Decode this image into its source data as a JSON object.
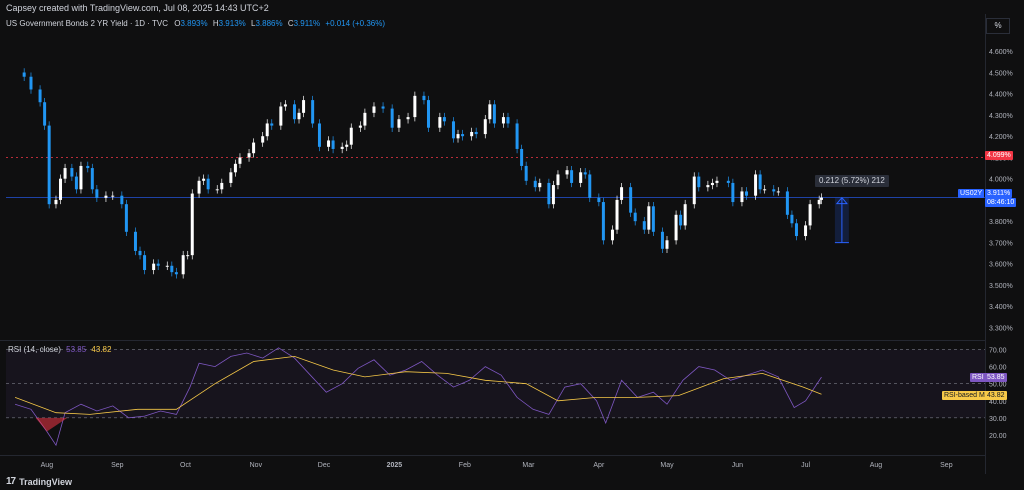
{
  "header": {
    "caption": "Capsey created with TradingView.com, Jul 08, 2025 14:43 UTC+2",
    "symbol_title": "US Government Bonds 2 YR Yield · 1D · TVC",
    "ohlc": {
      "o_label": "O",
      "o": "3.893%",
      "h_label": "H",
      "h": "3.913%",
      "l_label": "L",
      "l": "3.886%",
      "c_label": "C",
      "c": "3.911%",
      "change": "+0.014 (+0.36%)"
    },
    "unit_button": "%"
  },
  "price_axis": {
    "ticks": [
      "4.600%",
      "4.500%",
      "4.400%",
      "4.300%",
      "4.200%",
      "4.100%",
      "4.000%",
      "3.900%",
      "3.800%",
      "3.700%",
      "3.600%",
      "3.500%",
      "3.400%",
      "3.300%"
    ],
    "hline_label": "4.099%",
    "symbol_tag": "US02Y",
    "last_price": "3.911%",
    "countdown": "08:46:10"
  },
  "measure_label": "0.212 (5.72%) 212",
  "rsi": {
    "title": "RSI (14, close)",
    "value": "53.85",
    "ma_value": "43.82",
    "ticks": [
      "70.00",
      "60.00",
      "50.00",
      "40.00",
      "30.00",
      "20.00"
    ],
    "rsi_tag": "RSI",
    "ma_tag": "RSI-based MA"
  },
  "time_axis": {
    "labels": [
      "Aug",
      "Sep",
      "Oct",
      "Nov",
      "Dec",
      "2025",
      "Feb",
      "Mar",
      "Apr",
      "May",
      "Jun",
      "Jul",
      "Aug",
      "Sep"
    ]
  },
  "footer": {
    "brand": "TradingView"
  },
  "colors": {
    "up": "#ffffff",
    "down": "#2196f3",
    "rsi_line": "#7e57c2",
    "rsi_ma": "#f7c948",
    "hline": "#f23645",
    "price_line": "#2962ff"
  },
  "chart_data": {
    "type": "candlestick",
    "title": "US Government Bonds 2 YR Yield · 1D · TVC",
    "ylim": [
      3.25,
      4.7
    ],
    "rsi_ylim": [
      10,
      75
    ],
    "horizontal_line": 4.099,
    "last_price": 3.911,
    "measure": {
      "from": 3.699,
      "to": 3.911
    },
    "close_points": [
      {
        "x": "2024-07-18",
        "y": 4.5
      },
      {
        "x": "2024-07-22",
        "y": 4.48
      },
      {
        "x": "2024-07-25",
        "y": 4.42
      },
      {
        "x": "2024-07-29",
        "y": 4.36
      },
      {
        "x": "2024-07-31",
        "y": 4.25
      },
      {
        "x": "2024-08-02",
        "y": 3.88
      },
      {
        "x": "2024-08-05",
        "y": 3.9
      },
      {
        "x": "2024-08-07",
        "y": 4.0
      },
      {
        "x": "2024-08-09",
        "y": 4.05
      },
      {
        "x": "2024-08-12",
        "y": 4.01
      },
      {
        "x": "2024-08-14",
        "y": 3.95
      },
      {
        "x": "2024-08-16",
        "y": 4.06
      },
      {
        "x": "2024-08-19",
        "y": 4.05
      },
      {
        "x": "2024-08-21",
        "y": 3.95
      },
      {
        "x": "2024-08-23",
        "y": 3.91
      },
      {
        "x": "2024-08-27",
        "y": 3.92
      },
      {
        "x": "2024-08-30",
        "y": 3.92
      },
      {
        "x": "2024-09-03",
        "y": 3.88
      },
      {
        "x": "2024-09-05",
        "y": 3.75
      },
      {
        "x": "2024-09-09",
        "y": 3.66
      },
      {
        "x": "2024-09-11",
        "y": 3.64
      },
      {
        "x": "2024-09-13",
        "y": 3.57
      },
      {
        "x": "2024-09-17",
        "y": 3.6
      },
      {
        "x": "2024-09-19",
        "y": 3.59
      },
      {
        "x": "2024-09-23",
        "y": 3.59
      },
      {
        "x": "2024-09-25",
        "y": 3.56
      },
      {
        "x": "2024-09-27",
        "y": 3.55
      },
      {
        "x": "2024-09-30",
        "y": 3.64
      },
      {
        "x": "2024-10-02",
        "y": 3.64
      },
      {
        "x": "2024-10-04",
        "y": 3.93
      },
      {
        "x": "2024-10-07",
        "y": 3.99
      },
      {
        "x": "2024-10-09",
        "y": 4.0
      },
      {
        "x": "2024-10-11",
        "y": 3.95
      },
      {
        "x": "2024-10-15",
        "y": 3.95
      },
      {
        "x": "2024-10-17",
        "y": 3.98
      },
      {
        "x": "2024-10-21",
        "y": 4.03
      },
      {
        "x": "2024-10-23",
        "y": 4.07
      },
      {
        "x": "2024-10-25",
        "y": 4.1
      },
      {
        "x": "2024-10-29",
        "y": 4.12
      },
      {
        "x": "2024-10-31",
        "y": 4.17
      },
      {
        "x": "2024-11-04",
        "y": 4.2
      },
      {
        "x": "2024-11-06",
        "y": 4.26
      },
      {
        "x": "2024-11-08",
        "y": 4.25
      },
      {
        "x": "2024-11-12",
        "y": 4.34
      },
      {
        "x": "2024-11-14",
        "y": 4.35
      },
      {
        "x": "2024-11-18",
        "y": 4.28
      },
      {
        "x": "2024-11-20",
        "y": 4.31
      },
      {
        "x": "2024-11-22",
        "y": 4.37
      },
      {
        "x": "2024-11-26",
        "y": 4.26
      },
      {
        "x": "2024-11-29",
        "y": 4.15
      },
      {
        "x": "2024-12-03",
        "y": 4.18
      },
      {
        "x": "2024-12-05",
        "y": 4.14
      },
      {
        "x": "2024-12-09",
        "y": 4.15
      },
      {
        "x": "2024-12-11",
        "y": 4.16
      },
      {
        "x": "2024-12-13",
        "y": 4.24
      },
      {
        "x": "2024-12-17",
        "y": 4.25
      },
      {
        "x": "2024-12-19",
        "y": 4.31
      },
      {
        "x": "2024-12-23",
        "y": 4.34
      },
      {
        "x": "2024-12-27",
        "y": 4.33
      },
      {
        "x": "2024-12-31",
        "y": 4.24
      },
      {
        "x": "2025-01-03",
        "y": 4.28
      },
      {
        "x": "2025-01-07",
        "y": 4.29
      },
      {
        "x": "2025-01-10",
        "y": 4.39
      },
      {
        "x": "2025-01-14",
        "y": 4.37
      },
      {
        "x": "2025-01-16",
        "y": 4.24
      },
      {
        "x": "2025-01-21",
        "y": 4.29
      },
      {
        "x": "2025-01-23",
        "y": 4.27
      },
      {
        "x": "2025-01-27",
        "y": 4.19
      },
      {
        "x": "2025-01-29",
        "y": 4.21
      },
      {
        "x": "2025-01-31",
        "y": 4.2
      },
      {
        "x": "2025-02-04",
        "y": 4.22
      },
      {
        "x": "2025-02-06",
        "y": 4.21
      },
      {
        "x": "2025-02-10",
        "y": 4.28
      },
      {
        "x": "2025-02-12",
        "y": 4.35
      },
      {
        "x": "2025-02-14",
        "y": 4.26
      },
      {
        "x": "2025-02-18",
        "y": 4.29
      },
      {
        "x": "2025-02-20",
        "y": 4.26
      },
      {
        "x": "2025-02-24",
        "y": 4.14
      },
      {
        "x": "2025-02-26",
        "y": 4.06
      },
      {
        "x": "2025-02-28",
        "y": 3.99
      },
      {
        "x": "2025-03-04",
        "y": 3.96
      },
      {
        "x": "2025-03-06",
        "y": 3.98
      },
      {
        "x": "2025-03-10",
        "y": 3.88
      },
      {
        "x": "2025-03-12",
        "y": 3.97
      },
      {
        "x": "2025-03-14",
        "y": 4.02
      },
      {
        "x": "2025-03-18",
        "y": 4.04
      },
      {
        "x": "2025-03-20",
        "y": 3.98
      },
      {
        "x": "2025-03-24",
        "y": 4.03
      },
      {
        "x": "2025-03-26",
        "y": 4.02
      },
      {
        "x": "2025-03-28",
        "y": 3.91
      },
      {
        "x": "2025-04-01",
        "y": 3.89
      },
      {
        "x": "2025-04-03",
        "y": 3.71
      },
      {
        "x": "2025-04-07",
        "y": 3.76
      },
      {
        "x": "2025-04-09",
        "y": 3.9
      },
      {
        "x": "2025-04-11",
        "y": 3.96
      },
      {
        "x": "2025-04-15",
        "y": 3.84
      },
      {
        "x": "2025-04-17",
        "y": 3.8
      },
      {
        "x": "2025-04-21",
        "y": 3.76
      },
      {
        "x": "2025-04-23",
        "y": 3.87
      },
      {
        "x": "2025-04-25",
        "y": 3.75
      },
      {
        "x": "2025-04-29",
        "y": 3.67
      },
      {
        "x": "2025-05-01",
        "y": 3.71
      },
      {
        "x": "2025-05-05",
        "y": 3.83
      },
      {
        "x": "2025-05-07",
        "y": 3.78
      },
      {
        "x": "2025-05-09",
        "y": 3.88
      },
      {
        "x": "2025-05-13",
        "y": 4.01
      },
      {
        "x": "2025-05-15",
        "y": 3.96
      },
      {
        "x": "2025-05-19",
        "y": 3.97
      },
      {
        "x": "2025-05-21",
        "y": 3.98
      },
      {
        "x": "2025-05-23",
        "y": 3.99
      },
      {
        "x": "2025-05-28",
        "y": 3.98
      },
      {
        "x": "2025-05-30",
        "y": 3.89
      },
      {
        "x": "2025-06-03",
        "y": 3.94
      },
      {
        "x": "2025-06-05",
        "y": 3.92
      },
      {
        "x": "2025-06-09",
        "y": 4.02
      },
      {
        "x": "2025-06-11",
        "y": 3.95
      },
      {
        "x": "2025-06-13",
        "y": 3.95
      },
      {
        "x": "2025-06-17",
        "y": 3.94
      },
      {
        "x": "2025-06-19",
        "y": 3.94
      },
      {
        "x": "2025-06-23",
        "y": 3.83
      },
      {
        "x": "2025-06-25",
        "y": 3.79
      },
      {
        "x": "2025-06-27",
        "y": 3.73
      },
      {
        "x": "2025-07-01",
        "y": 3.78
      },
      {
        "x": "2025-07-03",
        "y": 3.88
      },
      {
        "x": "2025-07-07",
        "y": 3.9
      },
      {
        "x": "2025-07-08",
        "y": 3.911
      }
    ],
    "rsi_points": [
      {
        "x": "2024-07-18",
        "y": 38
      },
      {
        "x": "2024-07-25",
        "y": 35
      },
      {
        "x": "2024-08-01",
        "y": 22
      },
      {
        "x": "2024-08-05",
        "y": 14
      },
      {
        "x": "2024-08-09",
        "y": 33
      },
      {
        "x": "2024-08-16",
        "y": 38
      },
      {
        "x": "2024-08-23",
        "y": 34
      },
      {
        "x": "2024-08-30",
        "y": 37
      },
      {
        "x": "2024-09-06",
        "y": 30
      },
      {
        "x": "2024-09-13",
        "y": 31
      },
      {
        "x": "2024-09-20",
        "y": 34
      },
      {
        "x": "2024-09-27",
        "y": 32
      },
      {
        "x": "2024-10-03",
        "y": 48
      },
      {
        "x": "2024-10-07",
        "y": 62
      },
      {
        "x": "2024-10-14",
        "y": 60
      },
      {
        "x": "2024-10-21",
        "y": 66
      },
      {
        "x": "2024-10-28",
        "y": 68
      },
      {
        "x": "2024-11-04",
        "y": 65
      },
      {
        "x": "2024-11-11",
        "y": 71
      },
      {
        "x": "2024-11-18",
        "y": 65
      },
      {
        "x": "2024-11-25",
        "y": 55
      },
      {
        "x": "2024-12-02",
        "y": 45
      },
      {
        "x": "2024-12-09",
        "y": 50
      },
      {
        "x": "2024-12-16",
        "y": 59
      },
      {
        "x": "2024-12-23",
        "y": 64
      },
      {
        "x": "2024-12-30",
        "y": 55
      },
      {
        "x": "2025-01-06",
        "y": 58
      },
      {
        "x": "2025-01-13",
        "y": 63
      },
      {
        "x": "2025-01-20",
        "y": 55
      },
      {
        "x": "2025-01-27",
        "y": 48
      },
      {
        "x": "2025-02-03",
        "y": 52
      },
      {
        "x": "2025-02-10",
        "y": 60
      },
      {
        "x": "2025-02-17",
        "y": 55
      },
      {
        "x": "2025-02-24",
        "y": 42
      },
      {
        "x": "2025-03-03",
        "y": 35
      },
      {
        "x": "2025-03-10",
        "y": 32
      },
      {
        "x": "2025-03-17",
        "y": 48
      },
      {
        "x": "2025-03-24",
        "y": 50
      },
      {
        "x": "2025-03-31",
        "y": 40
      },
      {
        "x": "2025-04-04",
        "y": 27
      },
      {
        "x": "2025-04-11",
        "y": 52
      },
      {
        "x": "2025-04-18",
        "y": 42
      },
      {
        "x": "2025-04-25",
        "y": 45
      },
      {
        "x": "2025-05-01",
        "y": 38
      },
      {
        "x": "2025-05-08",
        "y": 52
      },
      {
        "x": "2025-05-15",
        "y": 60
      },
      {
        "x": "2025-05-22",
        "y": 58
      },
      {
        "x": "2025-05-29",
        "y": 52
      },
      {
        "x": "2025-06-05",
        "y": 55
      },
      {
        "x": "2025-06-12",
        "y": 58
      },
      {
        "x": "2025-06-19",
        "y": 54
      },
      {
        "x": "2025-06-26",
        "y": 36
      },
      {
        "x": "2025-07-01",
        "y": 40
      },
      {
        "x": "2025-07-08",
        "y": 53.85
      }
    ],
    "rsi_ma_points": [
      {
        "x": "2024-07-18",
        "y": 42
      },
      {
        "x": "2024-08-05",
        "y": 33
      },
      {
        "x": "2024-08-20",
        "y": 32
      },
      {
        "x": "2024-09-10",
        "y": 35
      },
      {
        "x": "2024-09-27",
        "y": 35
      },
      {
        "x": "2024-10-14",
        "y": 50
      },
      {
        "x": "2024-10-31",
        "y": 63
      },
      {
        "x": "2024-11-18",
        "y": 66
      },
      {
        "x": "2024-12-05",
        "y": 58
      },
      {
        "x": "2024-12-19",
        "y": 54
      },
      {
        "x": "2025-01-06",
        "y": 57
      },
      {
        "x": "2025-01-24",
        "y": 56
      },
      {
        "x": "2025-02-10",
        "y": 52
      },
      {
        "x": "2025-02-28",
        "y": 50
      },
      {
        "x": "2025-03-14",
        "y": 40
      },
      {
        "x": "2025-03-31",
        "y": 42
      },
      {
        "x": "2025-04-18",
        "y": 42
      },
      {
        "x": "2025-05-06",
        "y": 43
      },
      {
        "x": "2025-05-26",
        "y": 53
      },
      {
        "x": "2025-06-12",
        "y": 56
      },
      {
        "x": "2025-06-30",
        "y": 48
      },
      {
        "x": "2025-07-08",
        "y": 43.82
      }
    ]
  }
}
